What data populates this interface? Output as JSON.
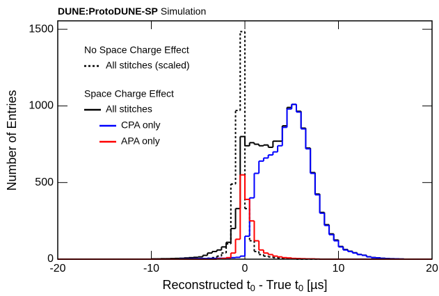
{
  "chart_data": {
    "type": "histogram",
    "title_bold": "DUNE:ProtoDUNE-SP",
    "title": "Simulation",
    "x_label": [
      "Reconstructed t",
      "0",
      " - True t",
      "0",
      " [µs]"
    ],
    "y_label": "Number of Entries",
    "xlim": [
      -20,
      20
    ],
    "ylim": [
      0,
      1555
    ],
    "xticks": [
      -20,
      -10,
      0,
      10,
      20
    ],
    "yticks": [
      0,
      500,
      1000,
      1500
    ],
    "legend_headers": [
      "No Space Charge Effect",
      "Space Charge Effect"
    ],
    "bins": [
      -20,
      -19.5,
      -19,
      -18.5,
      -18,
      -17.5,
      -17,
      -16.5,
      -16,
      -15.5,
      -15,
      -14.5,
      -14,
      -13.5,
      -13,
      -12.5,
      -12,
      -11.5,
      -11,
      -10.5,
      -10,
      -9.5,
      -9,
      -8.5,
      -8,
      -7.5,
      -7,
      -6.5,
      -6,
      -5.5,
      -5,
      -4.5,
      -4,
      -3.5,
      -3,
      -2.5,
      -2,
      -1.5,
      -1,
      -0.5,
      0,
      0.5,
      1,
      1.5,
      2,
      2.5,
      3,
      3.5,
      4,
      4.5,
      5,
      5.5,
      6,
      6.5,
      7,
      7.5,
      8,
      8.5,
      9,
      9.5,
      10,
      10.5,
      11,
      11.5,
      12,
      12.5,
      13,
      13.5,
      14,
      14.5,
      15,
      15.5,
      16,
      16.5,
      17,
      17.5,
      18,
      18.5,
      19,
      19.5,
      20
    ],
    "series": [
      {
        "name": "All stitches (scaled)",
        "color": "#000000",
        "dash": "3,3",
        "values": [
          0,
          0,
          0,
          0,
          0,
          0,
          0,
          0,
          0,
          0,
          0,
          0,
          0,
          0,
          0,
          0,
          0,
          0,
          0,
          0,
          0,
          0,
          0,
          0,
          0,
          0,
          0,
          0,
          0,
          0,
          2,
          4,
          6,
          10,
          20,
          40,
          100,
          490,
          970,
          1485,
          330,
          120,
          50,
          30,
          20,
          15,
          10,
          8,
          5,
          3,
          2,
          0,
          0,
          0,
          0,
          0,
          0,
          0,
          0,
          0,
          0,
          0,
          0,
          0,
          0,
          0,
          0,
          0,
          0,
          0,
          0,
          0,
          0,
          0,
          0,
          0,
          0,
          0,
          0,
          0
        ]
      },
      {
        "name": "All stitches",
        "color": "#000000",
        "values": [
          0,
          0,
          0,
          0,
          0,
          0,
          0,
          0,
          0,
          0,
          0,
          0,
          0,
          0,
          0,
          0,
          0,
          0,
          0,
          0,
          2,
          2,
          3,
          3,
          4,
          5,
          6,
          8,
          10,
          12,
          15,
          25,
          40,
          50,
          60,
          80,
          110,
          200,
          330,
          800,
          740,
          760,
          750,
          740,
          745,
          730,
          770,
          770,
          870,
          990,
          1010,
          965,
          855,
          725,
          565,
          425,
          305,
          225,
          165,
          125,
          83,
          63,
          52,
          42,
          31,
          26,
          16,
          11,
          9,
          6,
          4,
          3,
          2,
          1,
          0,
          0,
          0,
          0,
          0,
          0
        ]
      },
      {
        "name": "CPA only",
        "color": "#0000ff",
        "values": [
          0,
          0,
          0,
          0,
          0,
          0,
          0,
          0,
          0,
          0,
          0,
          0,
          0,
          0,
          0,
          0,
          0,
          0,
          0,
          0,
          0,
          0,
          0,
          0,
          0,
          0,
          2,
          2,
          3,
          3,
          4,
          4,
          5,
          5,
          6,
          6,
          8,
          10,
          12,
          20,
          150,
          400,
          560,
          640,
          660,
          680,
          700,
          740,
          860,
          980,
          1010,
          960,
          850,
          720,
          560,
          420,
          300,
          220,
          160,
          120,
          80,
          60,
          50,
          40,
          30,
          25,
          15,
          10,
          8,
          5,
          3,
          2,
          2,
          1,
          0,
          0,
          0,
          0,
          0,
          0
        ]
      },
      {
        "name": "APA only",
        "color": "#ff0000",
        "values": [
          0,
          0,
          0,
          0,
          0,
          0,
          0,
          0,
          0,
          0,
          0,
          0,
          0,
          0,
          0,
          0,
          0,
          0,
          0,
          0,
          0,
          0,
          0,
          0,
          0,
          0,
          0,
          0,
          0,
          0,
          0,
          0,
          0,
          0,
          3,
          5,
          10,
          40,
          130,
          550,
          390,
          250,
          120,
          60,
          40,
          30,
          20,
          15,
          10,
          8,
          5,
          4,
          3,
          2,
          2,
          1,
          0,
          0,
          0,
          0,
          0,
          0,
          0,
          0,
          0,
          0,
          0,
          0,
          0,
          0,
          0,
          0,
          0,
          0,
          0,
          0,
          0,
          0,
          0,
          0
        ]
      }
    ]
  }
}
